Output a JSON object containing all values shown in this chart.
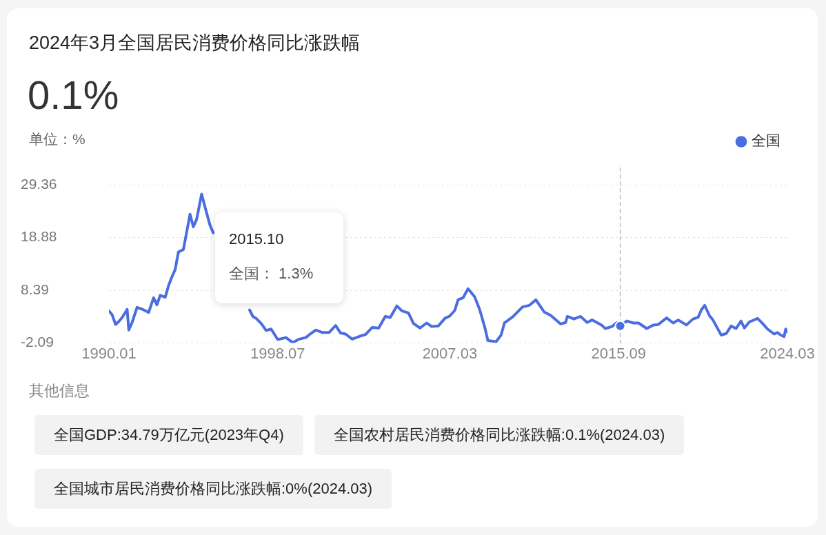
{
  "chart_data": {
    "type": "line",
    "title": "2024年3月全国居民消费价格同比涨跌幅",
    "subtitle": "0.1%",
    "ylabel": "单位：%",
    "x": [
      "1990-01",
      "1990-03",
      "1990-05",
      "1990-07",
      "1990-09",
      "1990-12",
      "1991-01",
      "1991-03",
      "1991-06",
      "1991-10",
      "1992-01",
      "1992-04",
      "1992-06",
      "1992-08",
      "1992-11",
      "1993-01",
      "1993-03",
      "1993-05",
      "1993-07",
      "1993-10",
      "1994-02",
      "1994-04",
      "1994-06",
      "1994-09",
      "1994-11",
      "1995-02",
      "1995-04",
      "1995-06",
      "1996-12",
      "1997-02",
      "1997-04",
      "1997-06",
      "1997-09",
      "1997-12",
      "1998-03",
      "1998-07",
      "1998-12",
      "1999-04",
      "1999-08",
      "1999-12",
      "2000-03",
      "2000-06",
      "2000-10",
      "2001-02",
      "2001-06",
      "2001-09",
      "2001-12",
      "2002-04",
      "2002-09",
      "2002-12",
      "2003-04",
      "2003-08",
      "2003-12",
      "2004-03",
      "2004-07",
      "2004-10",
      "2005-02",
      "2005-05",
      "2005-09",
      "2006-01",
      "2006-04",
      "2006-08",
      "2006-12",
      "2007-03",
      "2007-06",
      "2007-08",
      "2007-11",
      "2008-02",
      "2008-06",
      "2008-09",
      "2008-12",
      "2009-02",
      "2009-07",
      "2009-10",
      "2009-12",
      "2010-05",
      "2010-11",
      "2011-03",
      "2011-07",
      "2011-12",
      "2012-04",
      "2012-10",
      "2013-01",
      "2013-02",
      "2013-06",
      "2013-10",
      "2014-02",
      "2014-05",
      "2014-11",
      "2015-01",
      "2015-05",
      "2015-08",
      "2015-10",
      "2016-02",
      "2016-06",
      "2016-09",
      "2017-02",
      "2017-06",
      "2017-09",
      "2018-02",
      "2018-06",
      "2018-09",
      "2019-02",
      "2019-06",
      "2019-09",
      "2019-11",
      "2020-01",
      "2020-04",
      "2020-06",
      "2020-11",
      "2021-01",
      "2021-02",
      "2021-05",
      "2021-08",
      "2021-11",
      "2022-01",
      "2022-04",
      "2022-09",
      "2022-12",
      "2023-03",
      "2023-07",
      "2023-09",
      "2023-11",
      "2024-01",
      "2024-02",
      "2024-03"
    ],
    "series": [
      {
        "name": "全国",
        "color": "#4a6ee0",
        "values": [
          4.3,
          3.5,
          1.6,
          2.2,
          3.0,
          4.6,
          0.5,
          2.0,
          5.0,
          4.5,
          4.0,
          6.9,
          5.5,
          7.4,
          7.0,
          9.3,
          11.0,
          12.5,
          16.0,
          16.5,
          23.5,
          21.0,
          22.5,
          27.5,
          25.0,
          21.4,
          19.8,
          null,
          null,
          4.5,
          3.2,
          2.8,
          1.8,
          0.4,
          0.7,
          -1.4,
          -1.0,
          -2.0,
          -1.3,
          -1.0,
          -0.2,
          0.5,
          0.0,
          0.0,
          1.4,
          -0.1,
          -0.3,
          -1.3,
          -0.7,
          -0.4,
          1.0,
          0.9,
          3.2,
          3.0,
          5.3,
          4.3,
          3.9,
          1.8,
          0.9,
          1.9,
          1.2,
          1.3,
          2.8,
          3.3,
          4.4,
          6.5,
          6.9,
          8.7,
          7.1,
          4.6,
          1.2,
          -1.6,
          -1.8,
          -0.5,
          1.9,
          3.1,
          5.1,
          5.4,
          6.5,
          4.1,
          3.4,
          1.7,
          2.0,
          3.2,
          2.7,
          3.2,
          2.0,
          2.5,
          1.4,
          0.8,
          1.2,
          2.0,
          1.3,
          2.3,
          1.9,
          1.9,
          0.8,
          1.5,
          1.6,
          2.9,
          1.9,
          2.5,
          1.5,
          2.7,
          3.0,
          4.5,
          5.4,
          3.3,
          2.5,
          -0.5,
          -0.3,
          -0.2,
          1.3,
          0.8,
          2.3,
          0.9,
          2.1,
          2.8,
          1.8,
          0.7,
          -0.3,
          0.0,
          -0.5,
          -0.8,
          0.7,
          0.1
        ]
      }
    ],
    "xlim": [
      "1990-01",
      "2024-03"
    ],
    "xticks": [
      {
        "value": "1990-01",
        "label": "1990.01"
      },
      {
        "value": "1998-07",
        "label": "1998.07"
      },
      {
        "value": "2007-03",
        "label": "2007.03"
      },
      {
        "value": "2015-09",
        "label": "2015.09"
      },
      {
        "value": "2024-03",
        "label": "2024.03"
      }
    ],
    "ylim": [
      -2.09,
      29.36
    ],
    "yticks": [
      -2.09,
      8.39,
      18.88,
      29.36
    ],
    "grid": "y",
    "legend": "top right",
    "ref_lines": [
      {
        "axis": "x",
        "value": "2015-10",
        "color": "#bbbbbb",
        "line_style": "dashed"
      }
    ],
    "annotations": [
      "2015.10",
      "全国： 1.3%",
      "其他信息",
      "全国GDP:34.79万亿元(2023年Q4)",
      "全国农村居民消费价格同比涨跌幅:0.1%(2024.03)",
      "全国城市居民消费价格同比涨跌幅:0%(2024.03)"
    ]
  }
}
